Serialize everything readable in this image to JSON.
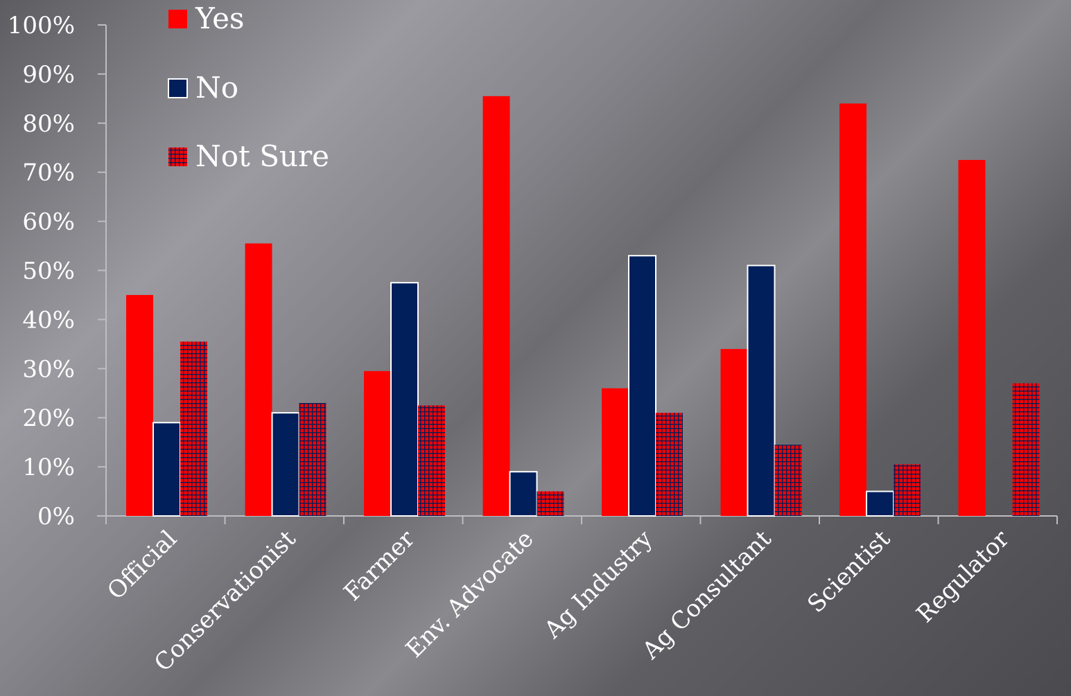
{
  "chart_data": {
    "type": "bar",
    "title": "",
    "xlabel": "",
    "ylabel": "",
    "ylim": [
      0,
      100
    ],
    "y_ticks": [
      "0%",
      "10%",
      "20%",
      "30%",
      "40%",
      "50%",
      "60%",
      "70%",
      "80%",
      "90%",
      "100%"
    ],
    "y_tick_values": [
      0,
      10,
      20,
      30,
      40,
      50,
      60,
      70,
      80,
      90,
      100
    ],
    "categories": [
      "Official",
      "Conservationist",
      "Farmer",
      "Env. Advocate",
      "Ag Industry",
      "Ag Consultant",
      "Scientist",
      "Regulator"
    ],
    "series": [
      {
        "name": "Yes",
        "color": "#ff0000",
        "pattern": "solid",
        "values": [
          45,
          55.5,
          29.5,
          85.5,
          26,
          34,
          84,
          72.5
        ]
      },
      {
        "name": "No",
        "color": "#001f5b",
        "pattern": "solid-outlined",
        "values": [
          19,
          21,
          47.5,
          9,
          53,
          51,
          5,
          0
        ]
      },
      {
        "name": "Not Sure",
        "color": "#ff0000",
        "pattern": "grid-navy",
        "values": [
          35.5,
          23,
          22.5,
          5,
          21,
          14.5,
          10.5,
          27
        ]
      }
    ],
    "legend_position": "top-left",
    "grid": false
  }
}
